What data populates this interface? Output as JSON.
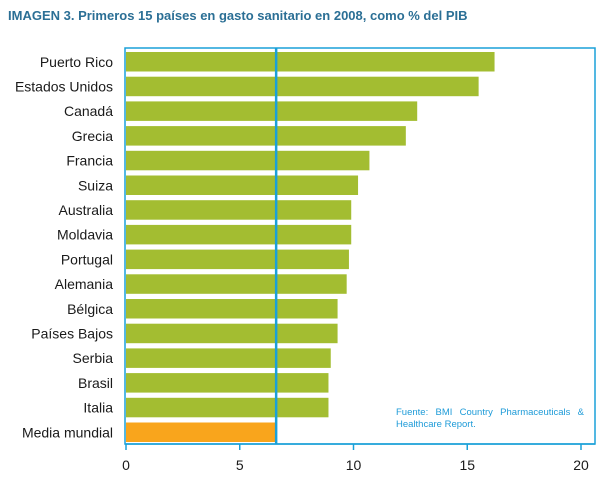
{
  "chart_data": {
    "type": "bar",
    "orientation": "horizontal",
    "title": "IMAGEN 3. Primeros 15 países en gasto sanitario en 2008, como % del PIB",
    "categories": [
      "Puerto Rico",
      "Estados Unidos",
      "Canadá",
      "Grecia",
      "Francia",
      "Suiza",
      "Australia",
      "Moldavia",
      "Portugal",
      "Alemania",
      "Bélgica",
      "Países Bajos",
      "Serbia",
      "Brasil",
      "Italia",
      "Media mundial"
    ],
    "values": [
      16.2,
      15.5,
      12.8,
      12.3,
      10.7,
      10.2,
      9.9,
      9.9,
      9.8,
      9.7,
      9.3,
      9.3,
      9.0,
      8.9,
      8.9,
      6.6
    ],
    "reference_line": 6.6,
    "xlim": [
      0,
      20
    ],
    "xticks": [
      0,
      5,
      10,
      15,
      20
    ],
    "xlabel": "",
    "ylabel": "",
    "grid": false,
    "bar_color": "#a3bd31",
    "highlight_color": "#f9a51c",
    "line_color": "#1aa0d8",
    "source": "Fuente: BMI Country Pharmaceuticals & Healthcare Report."
  }
}
